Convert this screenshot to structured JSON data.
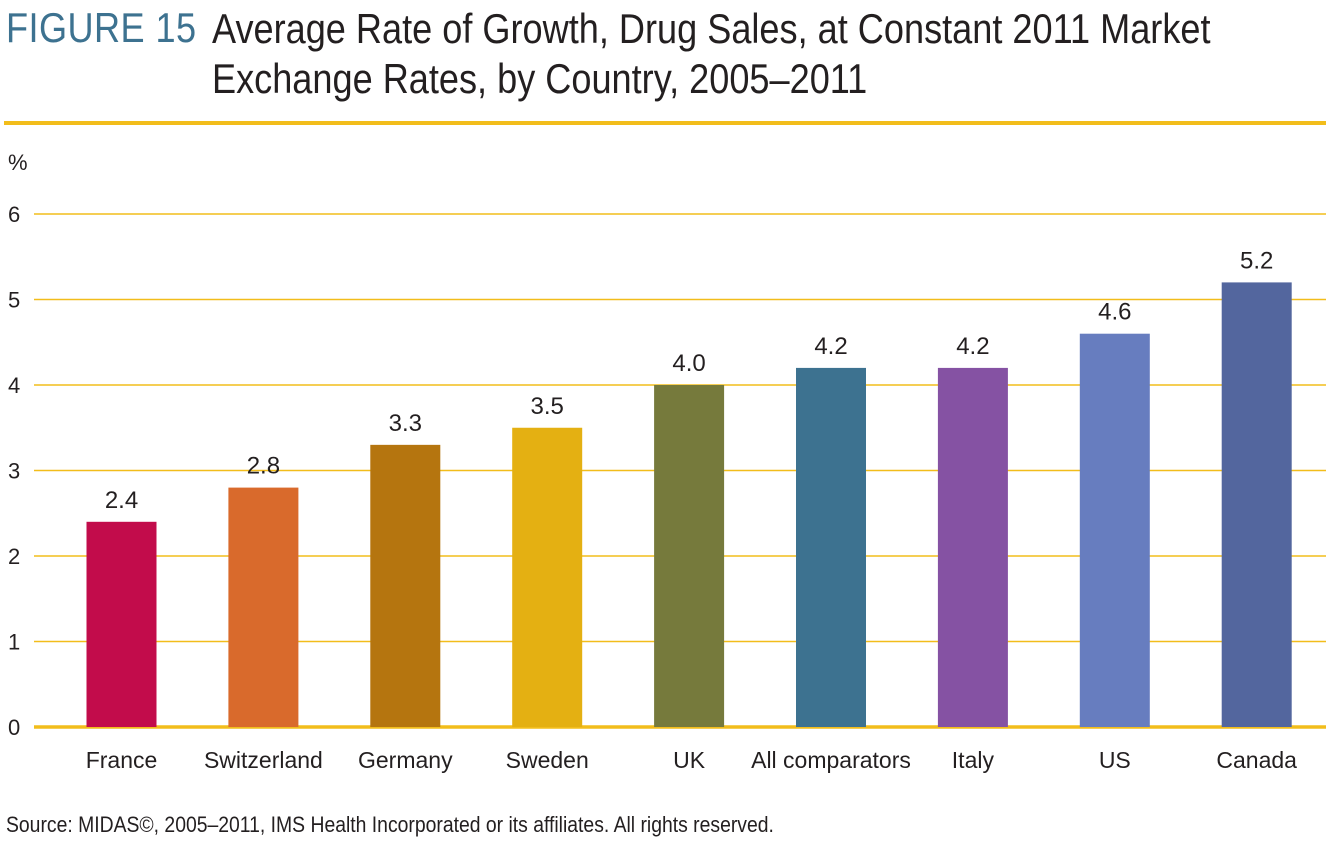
{
  "figure_label": "FIGURE 15",
  "figure_title": "Average Rate of Growth, Drug Sales, at Constant 2011 Market Exchange Rates, by Country, 2005–2011",
  "source": "Source: MIDAS©, 2005–2011, IMS Health Incorporated or its affiliates. All rights reserved.",
  "colors": {
    "accent": "#f2bd1b",
    "label": "#3d7290",
    "bars": [
      "#c20c4b",
      "#d96a2c",
      "#b5750f",
      "#e4b012",
      "#767a3c",
      "#3d7290",
      "#8552a3",
      "#677dbf",
      "#53669e"
    ]
  },
  "chart_data": {
    "type": "bar",
    "title": "Average Rate of Growth, Drug Sales, at Constant 2011 Market Exchange Rates, by Country, 2005–2011",
    "xlabel": "",
    "ylabel": "%",
    "ylim": [
      0,
      6
    ],
    "yticks": [
      "0",
      "1",
      "2",
      "3",
      "4",
      "5",
      "6"
    ],
    "grid": true,
    "categories": [
      "France",
      "Switzerland",
      "Germany",
      "Sweden",
      "UK",
      "All comparators",
      "Italy",
      "US",
      "Canada"
    ],
    "values": [
      2.4,
      2.8,
      3.3,
      3.5,
      4.0,
      4.2,
      4.2,
      4.6,
      5.2
    ],
    "value_labels": [
      "2.4",
      "2.8",
      "3.3",
      "3.5",
      "4.0",
      "4.2",
      "4.2",
      "4.6",
      "5.2"
    ]
  }
}
